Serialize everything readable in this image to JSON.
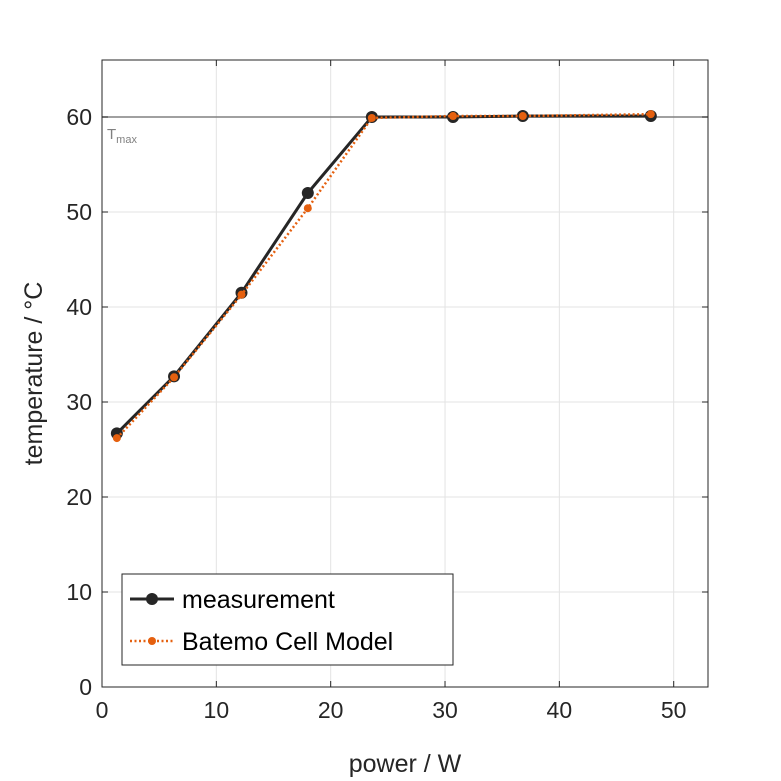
{
  "chart_data": {
    "type": "line",
    "xlabel": "power / W",
    "ylabel": "temperature / °C",
    "xlim": [
      0,
      53
    ],
    "ylim": [
      0,
      66
    ],
    "xticks": [
      "0",
      "10",
      "20",
      "30",
      "40",
      "50"
    ],
    "yticks": [
      "0",
      "10",
      "20",
      "30",
      "40",
      "50",
      "60"
    ],
    "grid": true,
    "legend_position": "bottom-left",
    "reference_line": {
      "y": 60,
      "label": "T",
      "label_sub": "max",
      "color": "#808080"
    },
    "series": [
      {
        "name": "measurement",
        "color": "#262626",
        "style": "solid",
        "x": [
          1.3,
          6.3,
          12.2,
          18.0,
          23.6,
          30.7,
          36.8,
          48.0
        ],
        "y": [
          26.7,
          32.7,
          41.5,
          52.0,
          60.0,
          60.0,
          60.1,
          60.1
        ]
      },
      {
        "name": "Batemo Cell Model",
        "color": "#E5600F",
        "style": "dotted",
        "x": [
          1.3,
          6.3,
          12.2,
          18.0,
          23.6,
          30.7,
          36.8,
          48.0
        ],
        "y": [
          26.2,
          32.6,
          41.3,
          50.4,
          59.9,
          60.1,
          60.1,
          60.3
        ]
      }
    ]
  }
}
